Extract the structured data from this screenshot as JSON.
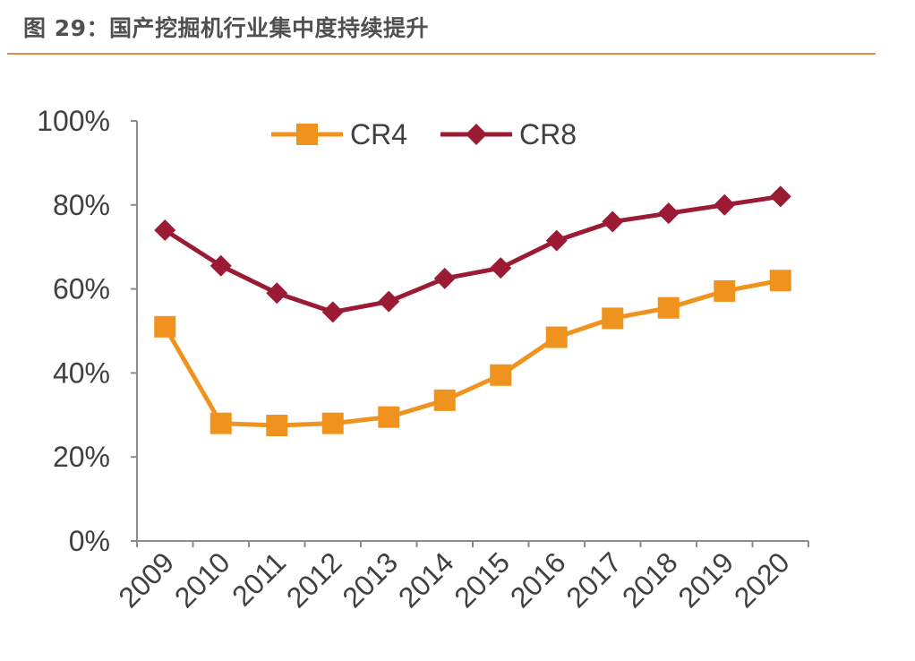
{
  "figure": {
    "title": "图 29：国产挖掘机行业集中度持续提升"
  },
  "colors": {
    "title_rule": "#E08A4A",
    "axis": "#8C8C8C",
    "text": "#404040"
  },
  "chart_data": {
    "type": "line",
    "title": "",
    "xlabel": "",
    "ylabel": "",
    "categories": [
      "2009",
      "2010",
      "2011",
      "2012",
      "2013",
      "2014",
      "2015",
      "2016",
      "2017",
      "2018",
      "2019",
      "2020"
    ],
    "ylim": [
      0,
      100
    ],
    "yticks": [
      0,
      20,
      40,
      60,
      80,
      100
    ],
    "ytick_labels": [
      "0%",
      "20%",
      "40%",
      "60%",
      "80%",
      "100%"
    ],
    "grid": false,
    "legend": "top-center",
    "series": [
      {
        "name": "CR4",
        "color": "#F0931E",
        "marker": "square",
        "values": [
          51,
          28,
          27.5,
          28,
          29.5,
          33.5,
          39.5,
          48.5,
          53,
          55.5,
          59.5,
          62
        ]
      },
      {
        "name": "CR8",
        "color": "#9B1B35",
        "marker": "diamond",
        "values": [
          74,
          65.5,
          59,
          54.5,
          57,
          62.5,
          65,
          71.5,
          76,
          78,
          80,
          82
        ]
      }
    ]
  }
}
